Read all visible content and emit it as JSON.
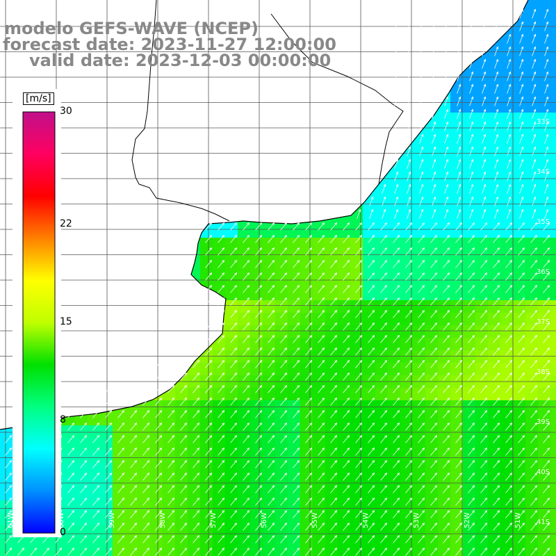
{
  "title": {
    "line1": "modelo GEFS-WAVE (NCEP)",
    "line2": "forecast date: 2023-11-27 12:00:00",
    "line3": "valid date: 2023-12-03 00:00:00"
  },
  "colorbar": {
    "unit": "[m/s]",
    "min": 0,
    "max": 30,
    "ticks": [
      "30",
      "22",
      "15",
      "8",
      "0"
    ],
    "tick_values": [
      30,
      22,
      15,
      8,
      0
    ],
    "stops": [
      "#0000ff",
      "#0090ff",
      "#00ffff",
      "#00ff80",
      "#00e000",
      "#c0ff00",
      "#ffff00",
      "#ff8000",
      "#ff0000",
      "#ff0060",
      "#c0108a"
    ]
  },
  "axes": {
    "lon_labels": [
      "61W",
      "60W",
      "59W",
      "58W",
      "57W",
      "56W",
      "55W",
      "54W",
      "53W",
      "52W",
      "51W"
    ],
    "lat_labels": [
      "33S",
      "34S",
      "35S",
      "36S",
      "37S",
      "38S",
      "39S",
      "40S",
      "41S"
    ]
  },
  "colors": {
    "grid": "#555555",
    "coast": "#000000",
    "arrow": "#ffffff",
    "title": "#888888"
  }
}
